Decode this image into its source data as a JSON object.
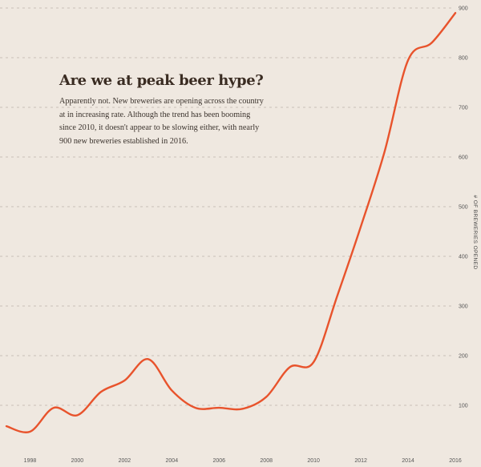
{
  "chart_data": {
    "type": "line",
    "title": "Are we at peak beer hype?",
    "subtitle": "Apparently not. New breweries are opening across the country at in increasing rate. Although the trend has been booming since 2010, it doesn't appear to be slowing either, with nearly 900 new breweries established in 2016.",
    "xlabel": "",
    "ylabel": "# OF BREWERIES OPENED",
    "ylim": [
      0,
      900
    ],
    "xlim": [
      1997,
      2016
    ],
    "y_ticks": [
      100,
      200,
      300,
      400,
      500,
      600,
      700,
      800,
      900
    ],
    "x_ticks": [
      1998,
      2000,
      2002,
      2004,
      2006,
      2008,
      2010,
      2012,
      2014,
      2016
    ],
    "grid": true,
    "series": [
      {
        "name": "New breweries",
        "color": "#e8532c",
        "x": [
          1997,
          1998,
          1999,
          2000,
          2001,
          2002,
          2003,
          2004,
          2005,
          2006,
          2007,
          2008,
          2009,
          2010,
          2011,
          2012,
          2013,
          2014,
          2015,
          2016
        ],
        "values": [
          58,
          47,
          95,
          80,
          127,
          150,
          193,
          130,
          95,
          95,
          93,
          117,
          177,
          187,
          320,
          460,
          610,
          795,
          830,
          890
        ]
      }
    ]
  }
}
